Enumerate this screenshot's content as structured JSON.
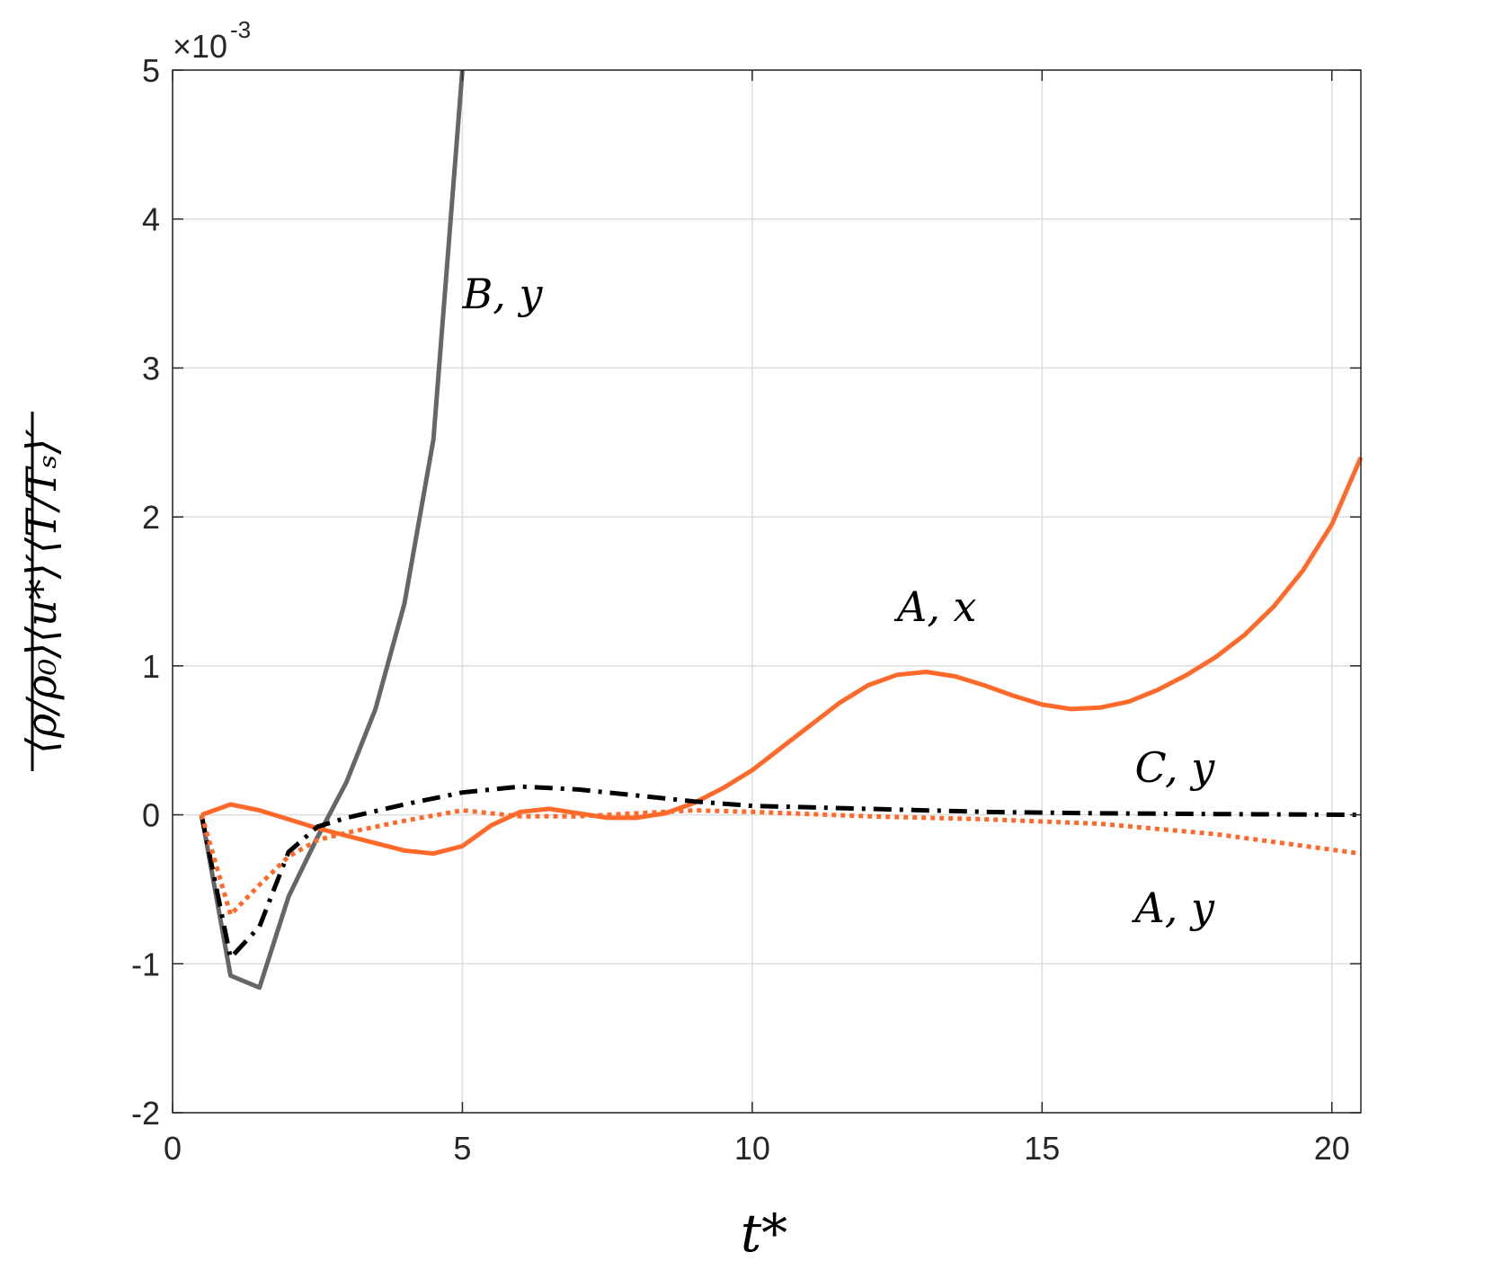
{
  "chart_data": {
    "type": "line",
    "xlabel": "t*",
    "ylabel": "⟨ρ/ρ₀⟩⟨u*⟩′⟨T/Tₛ⟩′",
    "y_multiplier": "×10",
    "y_exponent": "-3",
    "xlim": [
      0,
      20.5
    ],
    "ylim": [
      -2,
      5
    ],
    "xticks": [
      0,
      5,
      10,
      15,
      20
    ],
    "yticks": [
      -2,
      -1,
      0,
      1,
      2,
      3,
      4,
      5
    ],
    "grid": true,
    "colors": {
      "orange": "#ff6a2b",
      "gray": "#666666",
      "black": "#000000"
    },
    "series": [
      {
        "name": "B, y",
        "color": "#666666",
        "style": "solid",
        "label_pos": [
          5.0,
          3.4
        ],
        "x": [
          0.5,
          1.0,
          1.5,
          2.0,
          2.5,
          3.0,
          3.5,
          4.0,
          4.5,
          5.0
        ],
        "y": [
          0.0,
          -1.08,
          -1.16,
          -0.55,
          -0.15,
          0.22,
          0.71,
          1.42,
          2.52,
          5.0
        ]
      },
      {
        "name": "A, x",
        "color": "#ff6a2b",
        "style": "solid",
        "label_pos": [
          12.5,
          1.3
        ],
        "x": [
          0.5,
          1.0,
          1.5,
          2.0,
          2.5,
          3.0,
          3.5,
          4.0,
          4.5,
          5.0,
          5.5,
          6.0,
          6.5,
          7.0,
          7.5,
          8.0,
          8.5,
          9.0,
          9.5,
          10.0,
          10.5,
          11.0,
          11.5,
          12.0,
          12.5,
          13.0,
          13.5,
          14.0,
          14.5,
          15.0,
          15.5,
          16.0,
          16.5,
          17.0,
          17.5,
          18.0,
          18.5,
          19.0,
          19.5,
          20.0,
          20.5
        ],
        "y": [
          0.0,
          0.07,
          0.03,
          -0.03,
          -0.09,
          -0.14,
          -0.19,
          -0.24,
          -0.26,
          -0.21,
          -0.07,
          0.02,
          0.04,
          0.01,
          -0.02,
          -0.02,
          0.01,
          0.08,
          0.18,
          0.3,
          0.45,
          0.6,
          0.75,
          0.87,
          0.94,
          0.96,
          0.93,
          0.87,
          0.8,
          0.74,
          0.71,
          0.72,
          0.76,
          0.84,
          0.94,
          1.06,
          1.21,
          1.4,
          1.64,
          1.95,
          2.4
        ]
      },
      {
        "name": "C, y",
        "color": "#000000",
        "style": "dashdot",
        "label_pos": [
          16.6,
          0.22
        ],
        "x": [
          0.5,
          1.0,
          1.5,
          2.0,
          2.5,
          3.0,
          4.0,
          5.0,
          6.0,
          7.0,
          8.0,
          9.0,
          10.0,
          12.0,
          14.0,
          16.0,
          18.0,
          20.5
        ],
        "y": [
          0.0,
          -0.96,
          -0.75,
          -0.25,
          -0.08,
          -0.02,
          0.07,
          0.15,
          0.19,
          0.17,
          0.13,
          0.09,
          0.06,
          0.04,
          0.02,
          0.01,
          0.005,
          0.0
        ]
      },
      {
        "name": "A, y",
        "color": "#ff6a2b",
        "style": "dotted",
        "label_pos": [
          16.6,
          -0.72
        ],
        "x": [
          0.5,
          1.0,
          1.5,
          2.0,
          2.5,
          3.0,
          4.0,
          5.0,
          6.0,
          7.0,
          8.0,
          9.0,
          10.0,
          12.0,
          14.0,
          16.0,
          18.0,
          20.5
        ],
        "y": [
          0.0,
          -0.67,
          -0.47,
          -0.28,
          -0.17,
          -0.12,
          -0.04,
          0.03,
          -0.01,
          -0.01,
          0.01,
          0.03,
          0.02,
          -0.01,
          -0.03,
          -0.06,
          -0.13,
          -0.26
        ]
      }
    ]
  }
}
